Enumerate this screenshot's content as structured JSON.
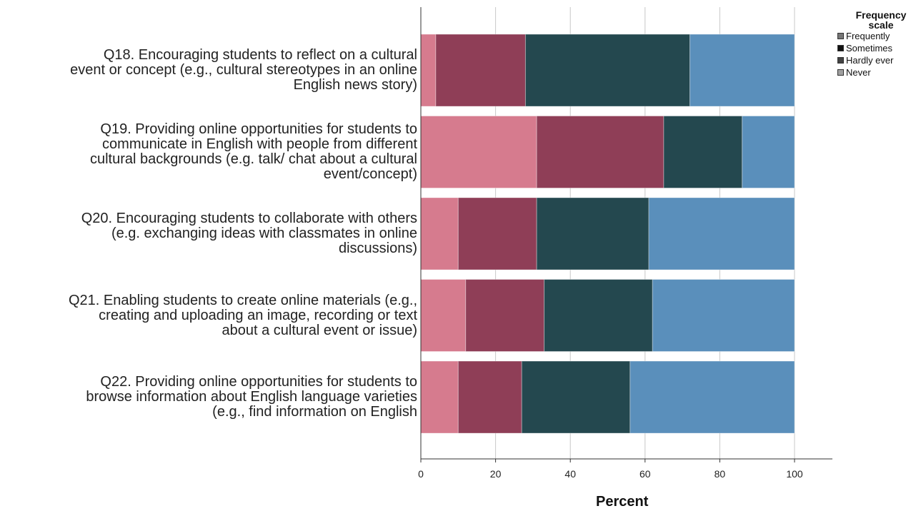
{
  "chart_data": {
    "type": "bar",
    "orientation": "horizontal",
    "stacked": true,
    "categories": [
      [
        "Q18. Encouraging students to reflect on a cultural",
        "event or concept (e.g., cultural stereotypes in an online",
        "English news story)"
      ],
      [
        "Q19. Providing online opportunities for students to",
        "communicate in English with people from different",
        "cultural backgrounds (e.g. talk/ chat about a cultural",
        "event/concept)"
      ],
      [
        "Q20. Encouraging students to collaborate with others",
        "(e.g. exchanging ideas with classmates in online",
        "discussions)"
      ],
      [
        "Q21. Enabling students to create online materials (e.g.,",
        "creating and uploading an image, recording or text",
        "about a cultural event or issue)"
      ],
      [
        "Q22. Providing online opportunities for students to",
        "browse information about English language varieties",
        "(e.g., find information on English"
      ]
    ],
    "series": [
      {
        "name": "Never",
        "color": "#d67b8e",
        "values": [
          4,
          31,
          10,
          12,
          10
        ]
      },
      {
        "name": "Hardly ever",
        "color": "#8f3e57",
        "values": [
          24,
          34,
          21,
          21,
          17
        ]
      },
      {
        "name": "Sometimes",
        "color": "#24484f",
        "values": [
          44,
          21,
          30,
          29,
          29
        ]
      },
      {
        "name": "Frequently",
        "color": "#5a8fbb",
        "values": [
          28,
          14,
          39,
          38,
          44
        ]
      }
    ],
    "xlabel": "Percent",
    "xlim": [
      0,
      100
    ],
    "xticks": [
      0,
      20,
      40,
      60,
      80,
      100
    ],
    "legend": {
      "title": "Frequency scale",
      "position": "top-right",
      "entries": [
        {
          "label": "Frequently",
          "color": "#777777"
        },
        {
          "label": "Sometimes",
          "color": "#111111"
        },
        {
          "label": "Hardly ever",
          "color": "#444444"
        },
        {
          "label": "Never",
          "color": "#a0a0a0"
        }
      ]
    },
    "grid": true
  }
}
